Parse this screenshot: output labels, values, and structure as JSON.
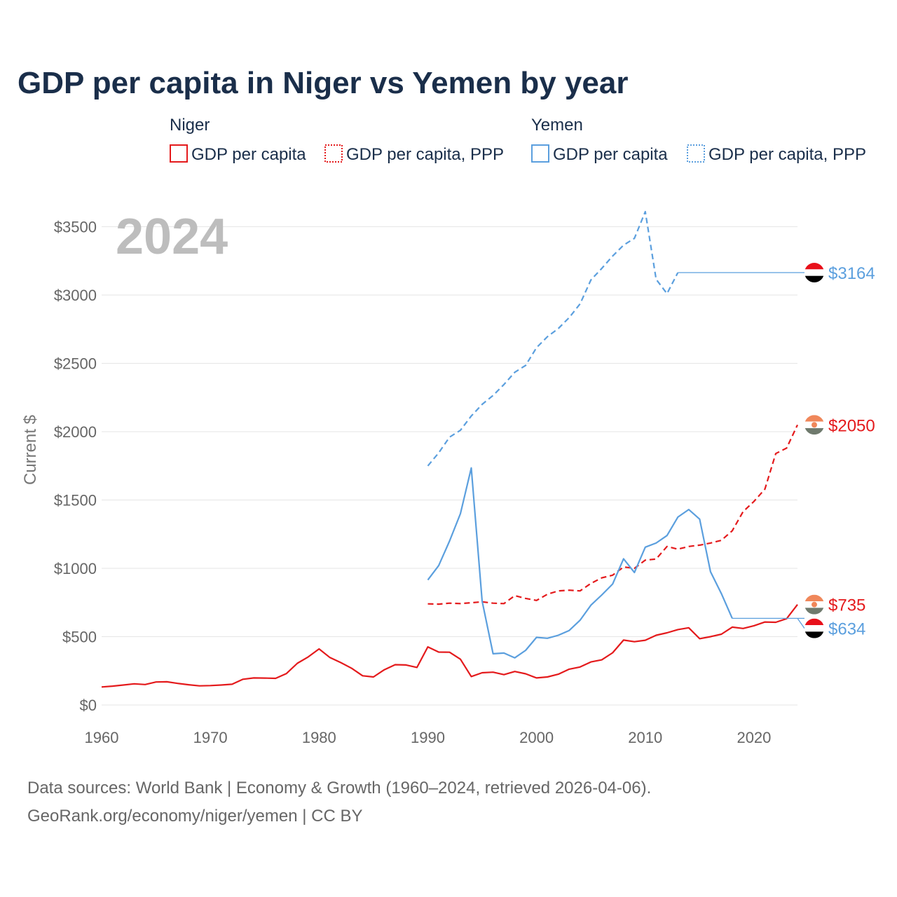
{
  "title": "GDP per capita in Niger vs Yemen by year",
  "year_label": "2024",
  "legend": {
    "groups": [
      {
        "name": "Niger",
        "color": "#e41a1c",
        "items": [
          "GDP per capita",
          "GDP per capita, PPP"
        ]
      },
      {
        "name": "Yemen",
        "color": "#5b9fde",
        "items": [
          "GDP per capita",
          "GDP per capita, PPP"
        ]
      }
    ]
  },
  "colors": {
    "niger": "#e41a1c",
    "yemen": "#5b9fde"
  },
  "footer": {
    "line1": "Data sources: World Bank | Economy & Growth (1960–2024, retrieved 2026-04-06).",
    "line2": "GeoRank.org/economy/niger/yemen | CC BY"
  },
  "chart_data": {
    "type": "line",
    "title": "GDP per capita in Niger vs Yemen by year",
    "xlabel": "",
    "ylabel": "Current $",
    "xlim": [
      1960,
      2024
    ],
    "ylim": [
      0,
      3650
    ],
    "xticks": [
      1960,
      1970,
      1980,
      1990,
      2000,
      2010,
      2020
    ],
    "yticks": [
      0,
      500,
      1000,
      1500,
      2000,
      2500,
      3000,
      3500
    ],
    "ytick_labels": [
      "$0",
      "$500",
      "$1000",
      "$1500",
      "$2000",
      "$2500",
      "$3000",
      "$3500"
    ],
    "grid": true,
    "series": [
      {
        "id": "niger_gdp",
        "name": "GDP per capita",
        "country": "Niger",
        "style": "solid",
        "color": "#e41a1c",
        "end_label": "$735",
        "flag": "niger",
        "x": [
          1960,
          1961,
          1962,
          1963,
          1964,
          1965,
          1966,
          1967,
          1968,
          1969,
          1970,
          1971,
          1972,
          1973,
          1974,
          1975,
          1976,
          1977,
          1978,
          1979,
          1980,
          1981,
          1982,
          1983,
          1984,
          1985,
          1986,
          1987,
          1988,
          1989,
          1990,
          1991,
          1992,
          1993,
          1994,
          1995,
          1996,
          1997,
          1998,
          1999,
          2000,
          2001,
          2002,
          2003,
          2004,
          2005,
          2006,
          2007,
          2008,
          2009,
          2010,
          2011,
          2012,
          2013,
          2014,
          2015,
          2016,
          2017,
          2018,
          2019,
          2020,
          2021,
          2022,
          2023,
          2024
        ],
        "values": [
          132,
          138,
          146,
          155,
          150,
          168,
          170,
          158,
          148,
          140,
          142,
          146,
          152,
          188,
          198,
          197,
          195,
          230,
          305,
          352,
          410,
          347,
          310,
          268,
          214,
          205,
          258,
          295,
          293,
          275,
          425,
          387,
          386,
          335,
          208,
          236,
          240,
          222,
          245,
          228,
          198,
          205,
          225,
          262,
          278,
          315,
          330,
          382,
          475,
          463,
          474,
          510,
          528,
          552,
          565,
          485,
          500,
          518,
          570,
          560,
          580,
          607,
          605,
          632,
          735
        ]
      },
      {
        "id": "niger_ppp",
        "name": "GDP per capita, PPP",
        "country": "Niger",
        "style": "dashed",
        "color": "#e41a1c",
        "end_label": "$2050",
        "flag": "niger",
        "x": [
          1990,
          1991,
          1992,
          1993,
          1994,
          1995,
          1996,
          1997,
          1998,
          1999,
          2000,
          2001,
          2002,
          2003,
          2004,
          2005,
          2006,
          2007,
          2008,
          2009,
          2010,
          2011,
          2012,
          2013,
          2014,
          2015,
          2016,
          2017,
          2018,
          2019,
          2020,
          2021,
          2022,
          2023,
          2024
        ],
        "values": [
          740,
          738,
          745,
          742,
          748,
          755,
          745,
          742,
          800,
          780,
          765,
          810,
          835,
          840,
          835,
          890,
          930,
          950,
          1010,
          1000,
          1060,
          1068,
          1160,
          1140,
          1160,
          1170,
          1185,
          1205,
          1275,
          1415,
          1490,
          1580,
          1840,
          1880,
          2050
        ]
      },
      {
        "id": "yemen_gdp",
        "name": "GDP per capita",
        "country": "Yemen",
        "style": "solid",
        "color": "#5b9fde",
        "end_label": "$634",
        "flag": "yemen",
        "x": [
          1990,
          1991,
          1992,
          1993,
          1994,
          1995,
          1996,
          1997,
          1998,
          1999,
          2000,
          2001,
          2002,
          2003,
          2004,
          2005,
          2006,
          2007,
          2008,
          2009,
          2010,
          2011,
          2012,
          2013,
          2014,
          2015,
          2016,
          2017,
          2018
        ],
        "values": [
          915,
          1020,
          1200,
          1400,
          1735,
          760,
          375,
          380,
          345,
          400,
          495,
          488,
          510,
          545,
          620,
          730,
          805,
          885,
          1070,
          970,
          1155,
          1185,
          1240,
          1375,
          1430,
          1360,
          975,
          815,
          634
        ],
        "last_value_year": 2018
      },
      {
        "id": "yemen_ppp",
        "name": "GDP per capita, PPP",
        "country": "Yemen",
        "style": "dashed",
        "color": "#5b9fde",
        "end_label": "$3164",
        "flag": "yemen",
        "x": [
          1990,
          1991,
          1992,
          1993,
          1994,
          1995,
          1996,
          1997,
          1998,
          1999,
          2000,
          2001,
          2002,
          2003,
          2004,
          2005,
          2006,
          2007,
          2008,
          2009,
          2010,
          2011,
          2012,
          2013
        ],
        "values": [
          1750,
          1845,
          1960,
          2010,
          2115,
          2200,
          2265,
          2345,
          2435,
          2485,
          2615,
          2695,
          2755,
          2835,
          2935,
          3110,
          3195,
          3285,
          3365,
          3415,
          3610,
          3115,
          3010,
          3164
        ],
        "last_value_year": 2013
      }
    ]
  }
}
